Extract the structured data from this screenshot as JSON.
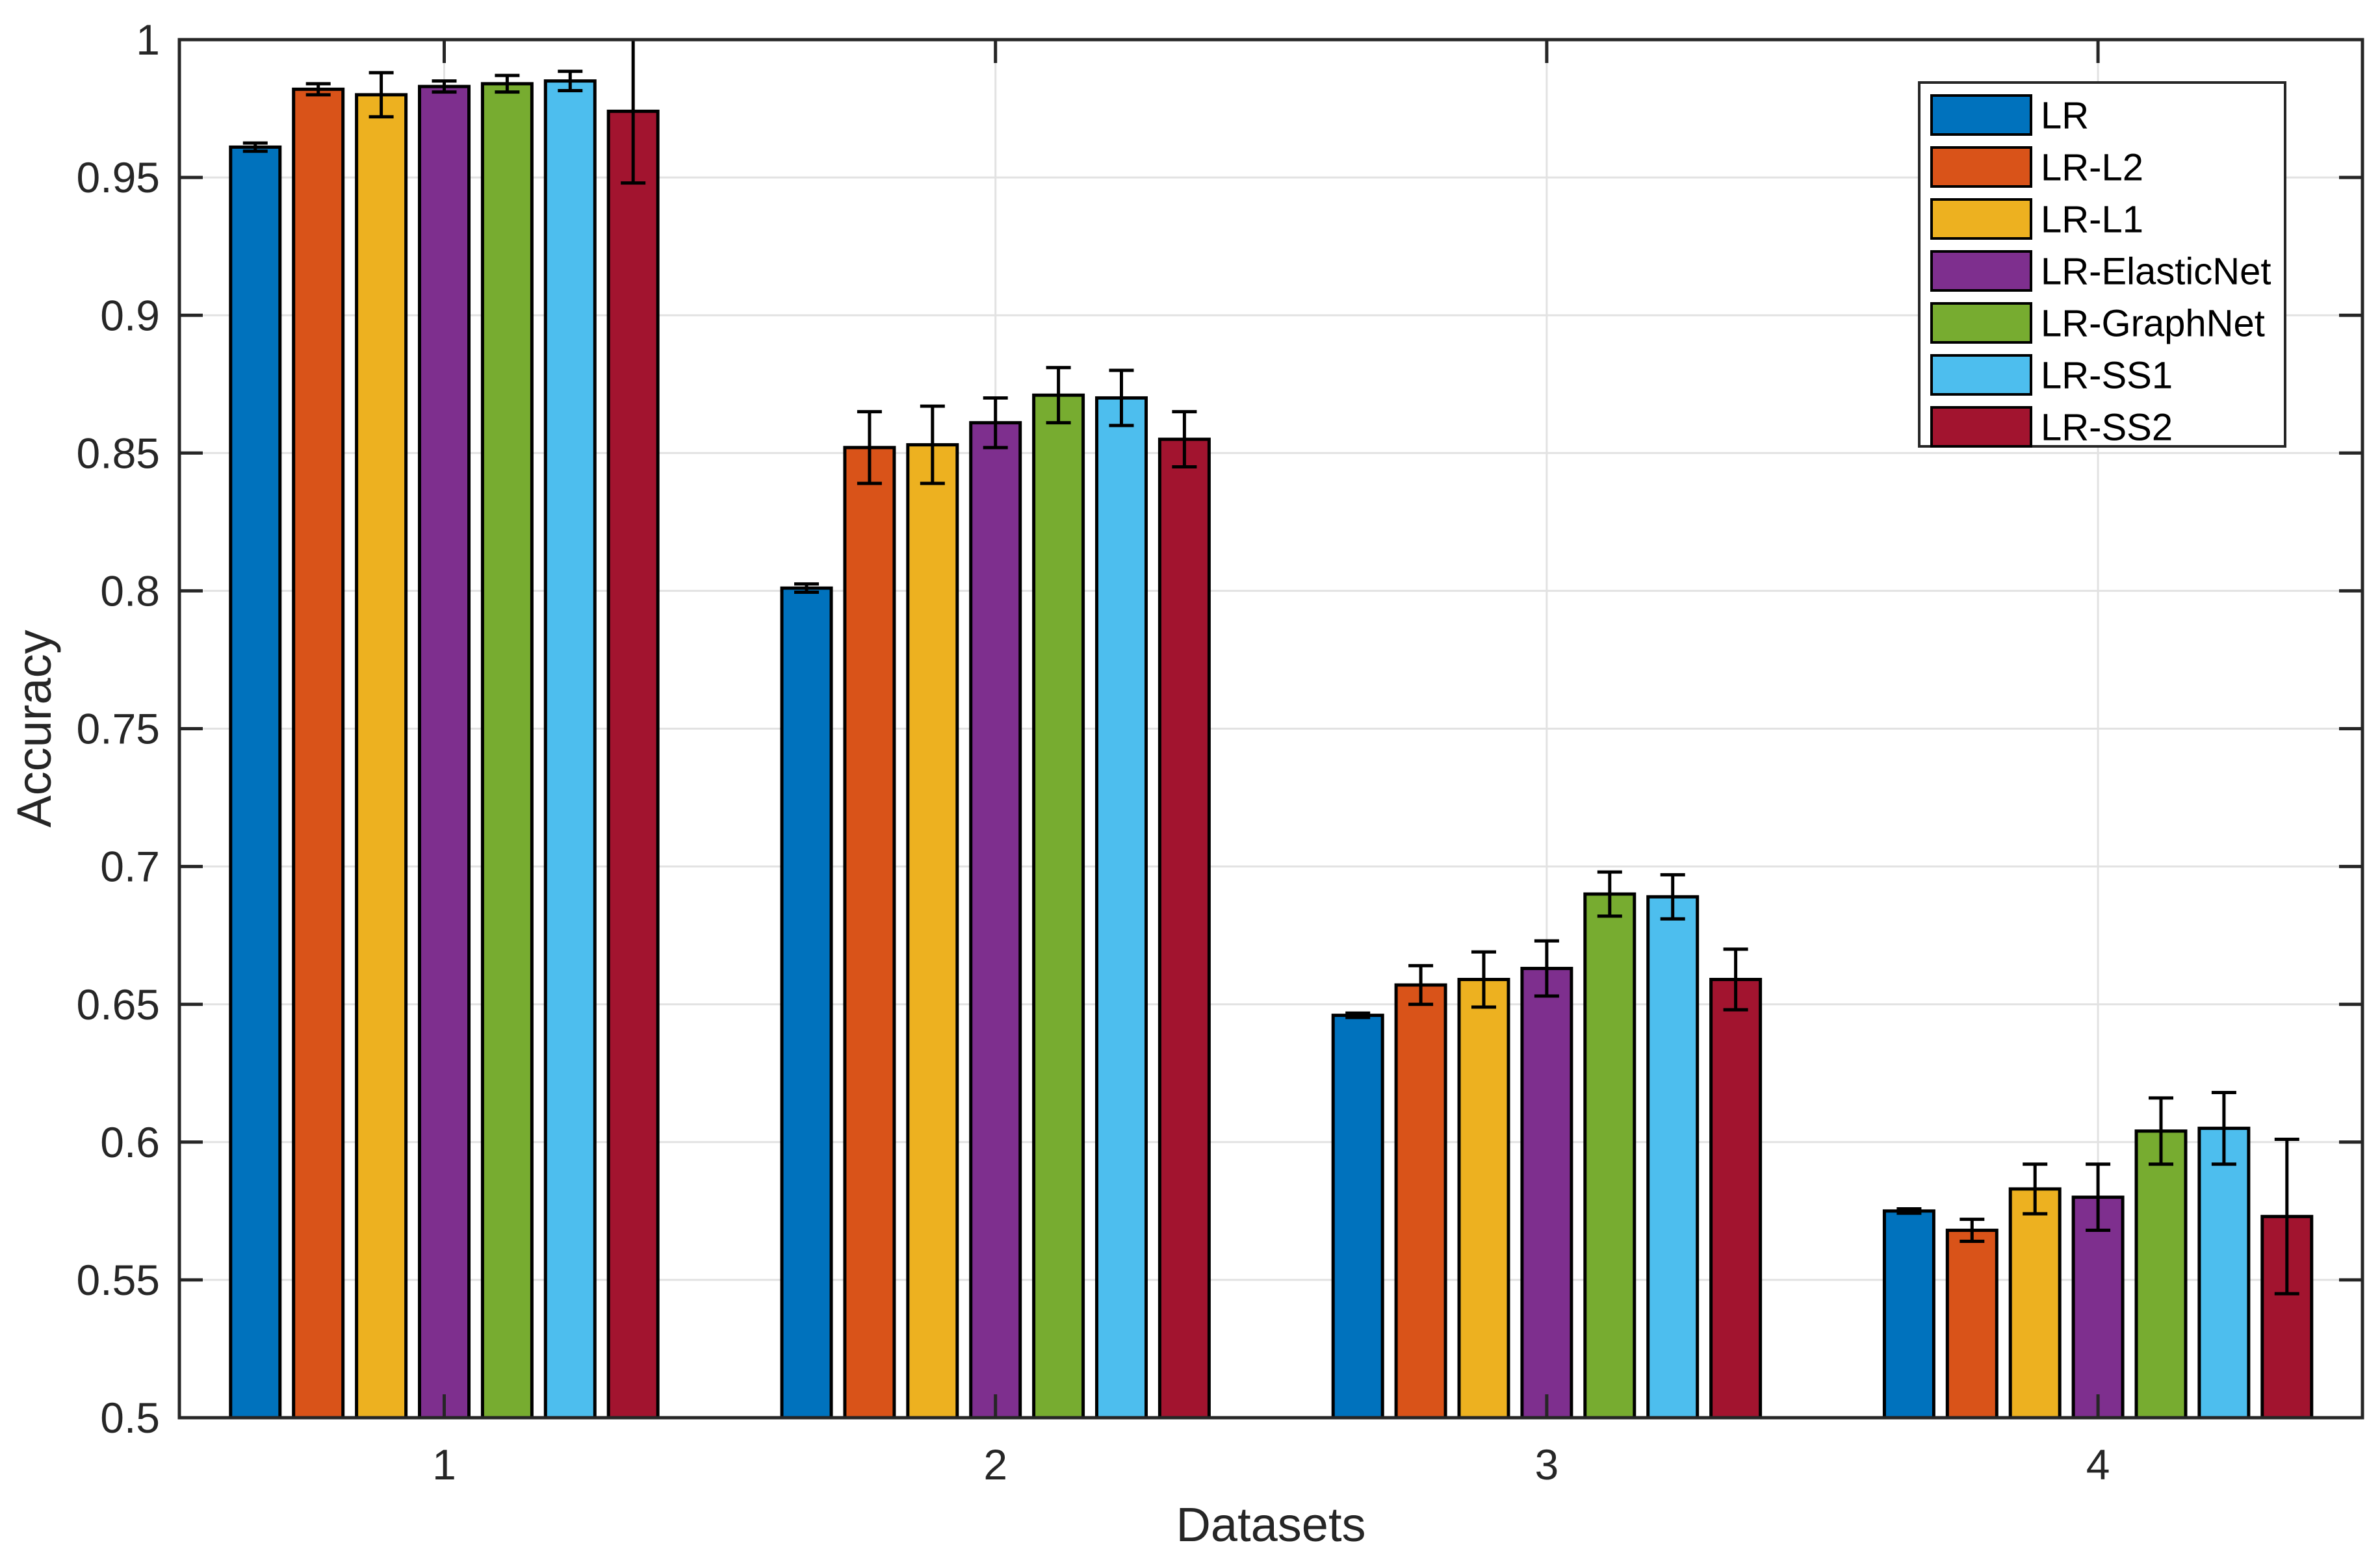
{
  "chart_data": {
    "type": "bar",
    "title": "",
    "xlabel": "Datasets",
    "ylabel": "Accuracy",
    "categories": [
      "1",
      "2",
      "3",
      "4"
    ],
    "series": [
      {
        "name": "LR",
        "color": "#0072BD",
        "values": [
          0.961,
          0.801,
          0.646,
          0.575
        ],
        "errors": [
          0.0015,
          0.0015,
          0.0008,
          0.0008
        ]
      },
      {
        "name": "LR-L2",
        "color": "#D95319",
        "values": [
          0.982,
          0.852,
          0.657,
          0.568
        ],
        "errors": [
          0.002,
          0.013,
          0.007,
          0.004
        ]
      },
      {
        "name": "LR-L1",
        "color": "#EDB120",
        "values": [
          0.98,
          0.853,
          0.659,
          0.583
        ],
        "errors": [
          0.008,
          0.014,
          0.01,
          0.009
        ]
      },
      {
        "name": "LR-ElasticNet",
        "color": "#7E2F8E",
        "values": [
          0.983,
          0.861,
          0.663,
          0.58
        ],
        "errors": [
          0.002,
          0.009,
          0.01,
          0.012
        ]
      },
      {
        "name": "LR-GraphNet",
        "color": "#77AC30",
        "values": [
          0.984,
          0.871,
          0.69,
          0.604
        ],
        "errors": [
          0.003,
          0.01,
          0.008,
          0.012
        ]
      },
      {
        "name": "LR-SS1",
        "color": "#4DBEEE",
        "values": [
          0.985,
          0.87,
          0.689,
          0.605
        ],
        "errors": [
          0.0035,
          0.01,
          0.008,
          0.013
        ]
      },
      {
        "name": "LR-SS2",
        "color": "#A2142F",
        "values": [
          0.974,
          0.855,
          0.659,
          0.573
        ],
        "errors": [
          0.026,
          0.01,
          0.011,
          0.028
        ]
      }
    ],
    "ylim": [
      0.5,
      1.0
    ],
    "yticks": [
      0.5,
      0.55,
      0.6,
      0.65,
      0.7,
      0.75,
      0.8,
      0.85,
      0.9,
      0.95,
      1.0
    ],
    "ytick_labels": [
      "0.5",
      "0.55",
      "0.6",
      "0.65",
      "0.7",
      "0.75",
      "0.8",
      "0.85",
      "0.9",
      "0.95",
      "1"
    ],
    "grid": true,
    "error_bars": true,
    "legend_position": "top-right",
    "colors": {
      "axes_and_text": "#262626",
      "grid_line": "#e2e2e2",
      "bar_edge": "#000000",
      "error_bar": "#000000",
      "background": "#ffffff",
      "legend_background": "#ffffff",
      "legend_border": "#262626"
    }
  }
}
